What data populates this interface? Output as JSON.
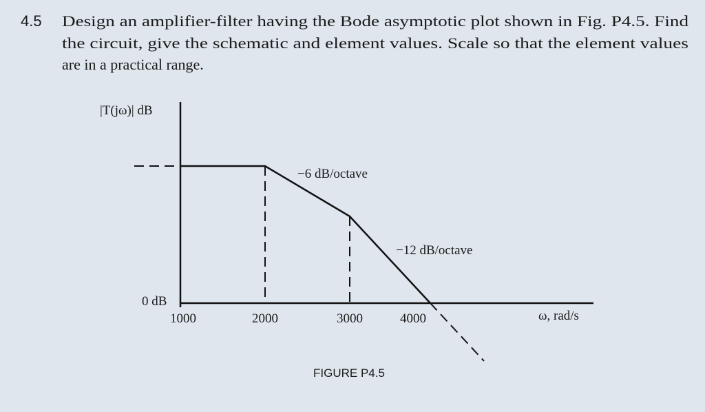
{
  "problem": {
    "number": "4.5",
    "lines": [
      "Design an amplifier-filter having the Bode asymptotic plot shown in Fig. P4.5. Find",
      "the circuit, give the schematic and element values. Scale so that the element values",
      "are in a practical range."
    ]
  },
  "figure": {
    "y_axis_label": "|T(jω)| dB",
    "zero_label": "0 dB",
    "x_ticks": [
      "1000",
      "2000",
      "3000",
      "4000"
    ],
    "x_axis_label": "ω, rad/s",
    "annotations": [
      "−6 dB/octave",
      "−12 dB/octave"
    ],
    "caption": "FIGURE P4.5"
  }
}
